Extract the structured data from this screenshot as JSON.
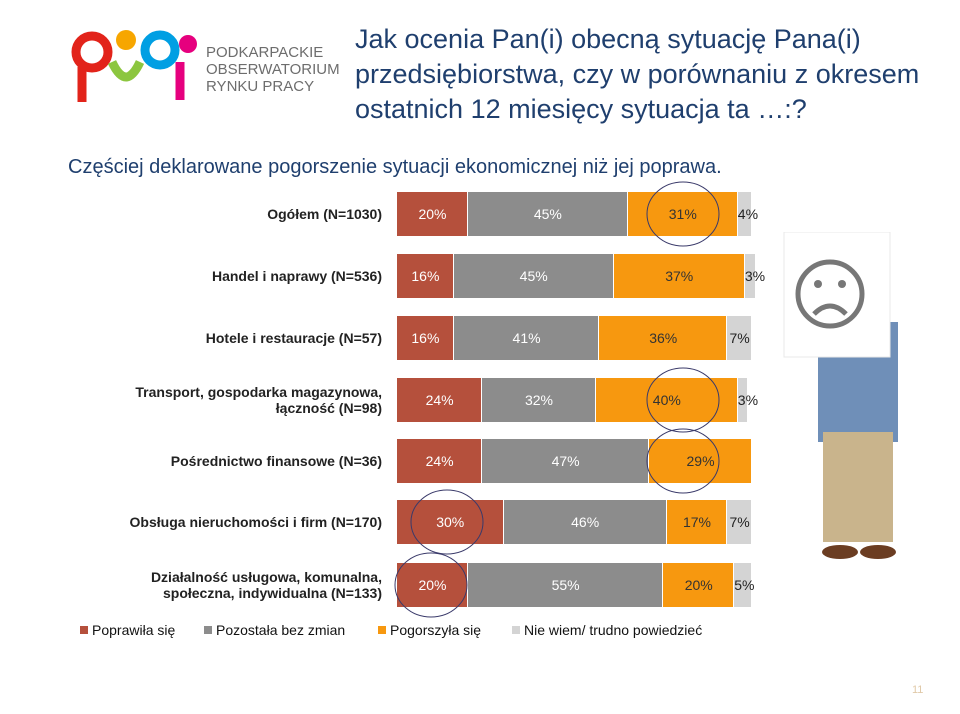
{
  "logo": {
    "lines": [
      "PODKARPACKIE",
      "OBSERWATORIUM",
      "RYNKU PRACY"
    ]
  },
  "page_number": "11",
  "chart_data": {
    "type": "bar",
    "orientation": "horizontal",
    "stacked": true,
    "title": "Jak ocenia Pan(i) obecną sytuację Pana(i) przedsiębiorstwa, czy w porównaniu z okresem ostatnich 12 miesięcy sytuacja ta …:?",
    "subtitle": "Częściej deklarowane pogorszenie sytuacji ekonomicznej niż jej poprawa.",
    "categories": [
      "Ogółem (N=1030)",
      "Handel i naprawy (N=536)",
      "Hotele i restauracje (N=57)",
      "Transport, gospodarka magazynowa,\nłączność (N=98)",
      "Pośrednictwo finansowe (N=36)",
      "Obsługa nieruchomości i firm (N=170)",
      "Działalność usługowa, komunalna,\nspołeczna, indywidualna (N=133)"
    ],
    "xlim": [
      0,
      100
    ],
    "legend": "bottom",
    "series": [
      {
        "name": "Poprawiła się",
        "color": "#b5503c",
        "values": [
          20,
          16,
          16,
          24,
          24,
          30,
          20
        ],
        "value_labels": [
          "20%",
          "16%",
          "16%",
          "24%",
          "24%",
          "30%",
          "20%"
        ]
      },
      {
        "name": "Pozostała bez zmian",
        "color": "#8c8c8c",
        "values": [
          45,
          45,
          41,
          32,
          47,
          46,
          55
        ],
        "value_labels": [
          "45%",
          "45%",
          "41%",
          "32%",
          "47%",
          "46%",
          "55%"
        ]
      },
      {
        "name": "Pogorszyła się",
        "color": "#f7980f",
        "values": [
          31,
          37,
          36,
          40,
          29,
          17,
          20
        ],
        "value_labels": [
          "31%",
          "37%",
          "36%",
          "40%",
          "29%",
          "17%",
          "20%"
        ]
      },
      {
        "name": "Nie wiem/ trudno powiedzieć",
        "color": "#d4d4d4",
        "values": [
          4,
          3,
          7,
          3,
          null,
          7,
          5
        ],
        "value_labels": [
          "4%",
          "3%",
          "7%",
          "3%",
          null,
          "7%",
          "5%"
        ]
      }
    ]
  }
}
